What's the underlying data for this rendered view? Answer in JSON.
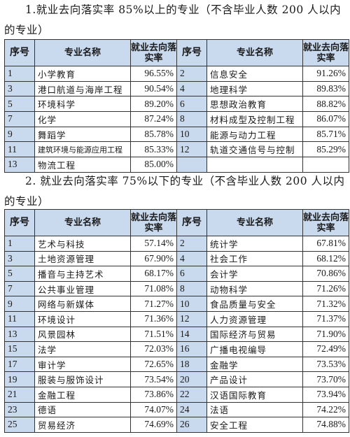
{
  "section1": {
    "heading": "1.就业去向落实率 85%以上的专业（不含毕业人数 200 人以内的专业）",
    "headers": {
      "no": "序号",
      "name": "专业名称",
      "rate": "就业去向落实率"
    },
    "rows": [
      [
        {
          "no": "1",
          "name": "小学教育",
          "rate": "96.55%"
        },
        {
          "no": "2",
          "name": "信息安全",
          "rate": "91.26%"
        }
      ],
      [
        {
          "no": "3",
          "name": "港口航道与海岸工程",
          "rate": "90.54%"
        },
        {
          "no": "4",
          "name": "地理科学",
          "rate": "89.83%"
        }
      ],
      [
        {
          "no": "5",
          "name": "环境科学",
          "rate": "89.20%"
        },
        {
          "no": "6",
          "name": "思想政治教育",
          "rate": "88.82%"
        }
      ],
      [
        {
          "no": "7",
          "name": "化学",
          "rate": "87.24%"
        },
        {
          "no": "8",
          "name": "材料成型及控制工程",
          "rate": "86.07%"
        }
      ],
      [
        {
          "no": "9",
          "name": "舞蹈学",
          "rate": "85.78%"
        },
        {
          "no": "10",
          "name": "能源与动力工程",
          "rate": "85.71%"
        }
      ],
      [
        {
          "no": "11",
          "name": "建筑环境与能源应用工程",
          "rate": "85.33%"
        },
        {
          "no": "12",
          "name": "轨道交通信号与控制",
          "rate": "85.29%"
        }
      ],
      [
        {
          "no": "13",
          "name": "物流工程",
          "rate": "85.00%"
        },
        {
          "no": "",
          "name": "",
          "rate": ""
        }
      ]
    ]
  },
  "section2": {
    "heading": "2. 就业去向落实率 75%以下的专业（不含毕业人数 200 人以内的专业）",
    "headers": {
      "no": "序号",
      "name": "专业名称",
      "rate": "就业去向落实率"
    },
    "rows": [
      [
        {
          "no": "1",
          "name": "艺术与科技",
          "rate": "57.14%"
        },
        {
          "no": "2",
          "name": "统计学",
          "rate": "67.81%"
        }
      ],
      [
        {
          "no": "3",
          "name": "土地资源管理",
          "rate": "67.90%"
        },
        {
          "no": "4",
          "name": "社会工作",
          "rate": "68.12%"
        }
      ],
      [
        {
          "no": "5",
          "name": "播音与主持艺术",
          "rate": "68.17%"
        },
        {
          "no": "6",
          "name": "会计学",
          "rate": "70.86%"
        }
      ],
      [
        {
          "no": "7",
          "name": "公共事业管理",
          "rate": "71.08%"
        },
        {
          "no": "8",
          "name": "动物科学",
          "rate": "71.26%"
        }
      ],
      [
        {
          "no": "9",
          "name": "网络与新媒体",
          "rate": "71.27%"
        },
        {
          "no": "10",
          "name": "食品质量与安全",
          "rate": "71.32%"
        }
      ],
      [
        {
          "no": "11",
          "name": "环境设计",
          "rate": "71.36%"
        },
        {
          "no": "12",
          "name": "人力资源管理",
          "rate": "71.37%"
        }
      ],
      [
        {
          "no": "13",
          "name": "风景园林",
          "rate": "71.51%"
        },
        {
          "no": "14",
          "name": "国际经济与贸易",
          "rate": "71.90%"
        }
      ],
      [
        {
          "no": "15",
          "name": "法学",
          "rate": "72.03%"
        },
        {
          "no": "16",
          "name": "广播电视编导",
          "rate": "72.49%"
        }
      ],
      [
        {
          "no": "17",
          "name": "审计学",
          "rate": "72.65%"
        },
        {
          "no": "18",
          "name": "金融学",
          "rate": "73.53%"
        }
      ],
      [
        {
          "no": "19",
          "name": "服装与服饰设计",
          "rate": "73.54%"
        },
        {
          "no": "20",
          "name": "产品设计",
          "rate": "73.70%"
        }
      ],
      [
        {
          "no": "21",
          "name": "金融工程",
          "rate": "73.86%"
        },
        {
          "no": "22",
          "name": "汉语国际教育",
          "rate": "73.94%"
        }
      ],
      [
        {
          "no": "23",
          "name": "德语",
          "rate": "74.07%"
        },
        {
          "no": "24",
          "name": "法语",
          "rate": "74.22%"
        }
      ],
      [
        {
          "no": "25",
          "name": "贸易经济",
          "rate": "74.69%"
        },
        {
          "no": "26",
          "name": "安全工程",
          "rate": "74.88%"
        }
      ]
    ]
  },
  "colors": {
    "header_bg": "#c9daee",
    "border": "#333333"
  }
}
